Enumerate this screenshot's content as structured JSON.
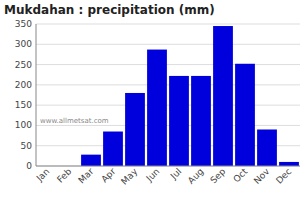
{
  "chart_data": {
    "type": "bar",
    "title": "Mukdahan : precipitation (mm)",
    "categories": [
      "Jan",
      "Feb",
      "Mar",
      "Apr",
      "May",
      "Jun",
      "Jul",
      "Aug",
      "Sep",
      "Oct",
      "Nov",
      "Dec"
    ],
    "values": [
      0,
      0,
      28,
      85,
      180,
      287,
      222,
      222,
      345,
      252,
      90,
      10
    ],
    "color": "#0000dd",
    "ylim": [
      0,
      350
    ],
    "yticks": [
      0,
      50,
      100,
      150,
      200,
      250,
      300,
      350
    ],
    "grid": true,
    "annotations": [
      "www.allmetsat.com"
    ]
  }
}
